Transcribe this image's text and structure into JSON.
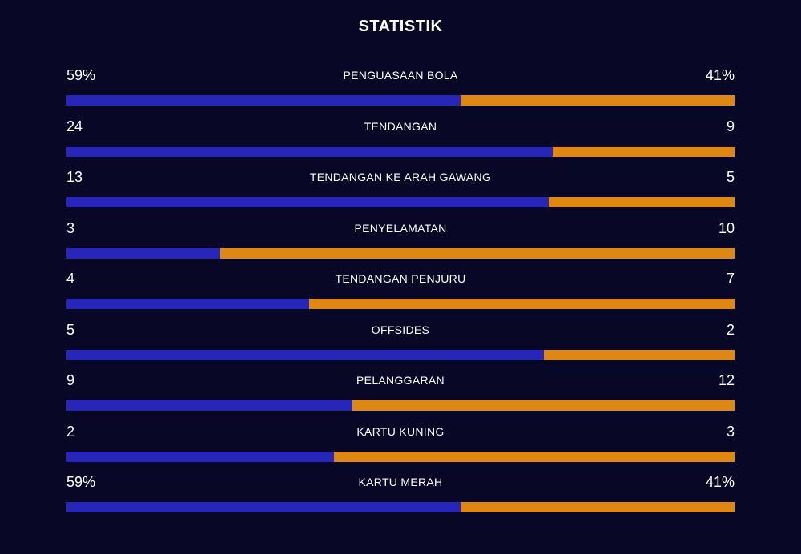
{
  "title": "STATISTIK",
  "colors": {
    "background": "#080826",
    "home": "#2626b8",
    "away": "#df8713"
  },
  "chart_data": {
    "type": "bar",
    "title": "STATISTIK",
    "rows": [
      {
        "label": "PENGUASAAN BOLA",
        "left": "59%",
        "right": "41%",
        "left_value": 59,
        "right_value": 41
      },
      {
        "label": "TENDANGAN",
        "left": "24",
        "right": "9",
        "left_value": 24,
        "right_value": 9
      },
      {
        "label": "TENDANGAN KE ARAH GAWANG",
        "left": "13",
        "right": "5",
        "left_value": 13,
        "right_value": 5
      },
      {
        "label": "PENYELAMATAN",
        "left": "3",
        "right": "10",
        "left_value": 3,
        "right_value": 10
      },
      {
        "label": "TENDANGAN PENJURU",
        "left": "4",
        "right": "7",
        "left_value": 4,
        "right_value": 7
      },
      {
        "label": "OFFSIDES",
        "left": "5",
        "right": "2",
        "left_value": 5,
        "right_value": 2
      },
      {
        "label": "PELANGGARAN",
        "left": "9",
        "right": "12",
        "left_value": 9,
        "right_value": 12
      },
      {
        "label": "KARTU KUNING",
        "left": "2",
        "right": "3",
        "left_value": 2,
        "right_value": 3
      },
      {
        "label": "KARTU MERAH",
        "left": "59%",
        "right": "41%",
        "left_value": 59,
        "right_value": 41
      }
    ]
  }
}
